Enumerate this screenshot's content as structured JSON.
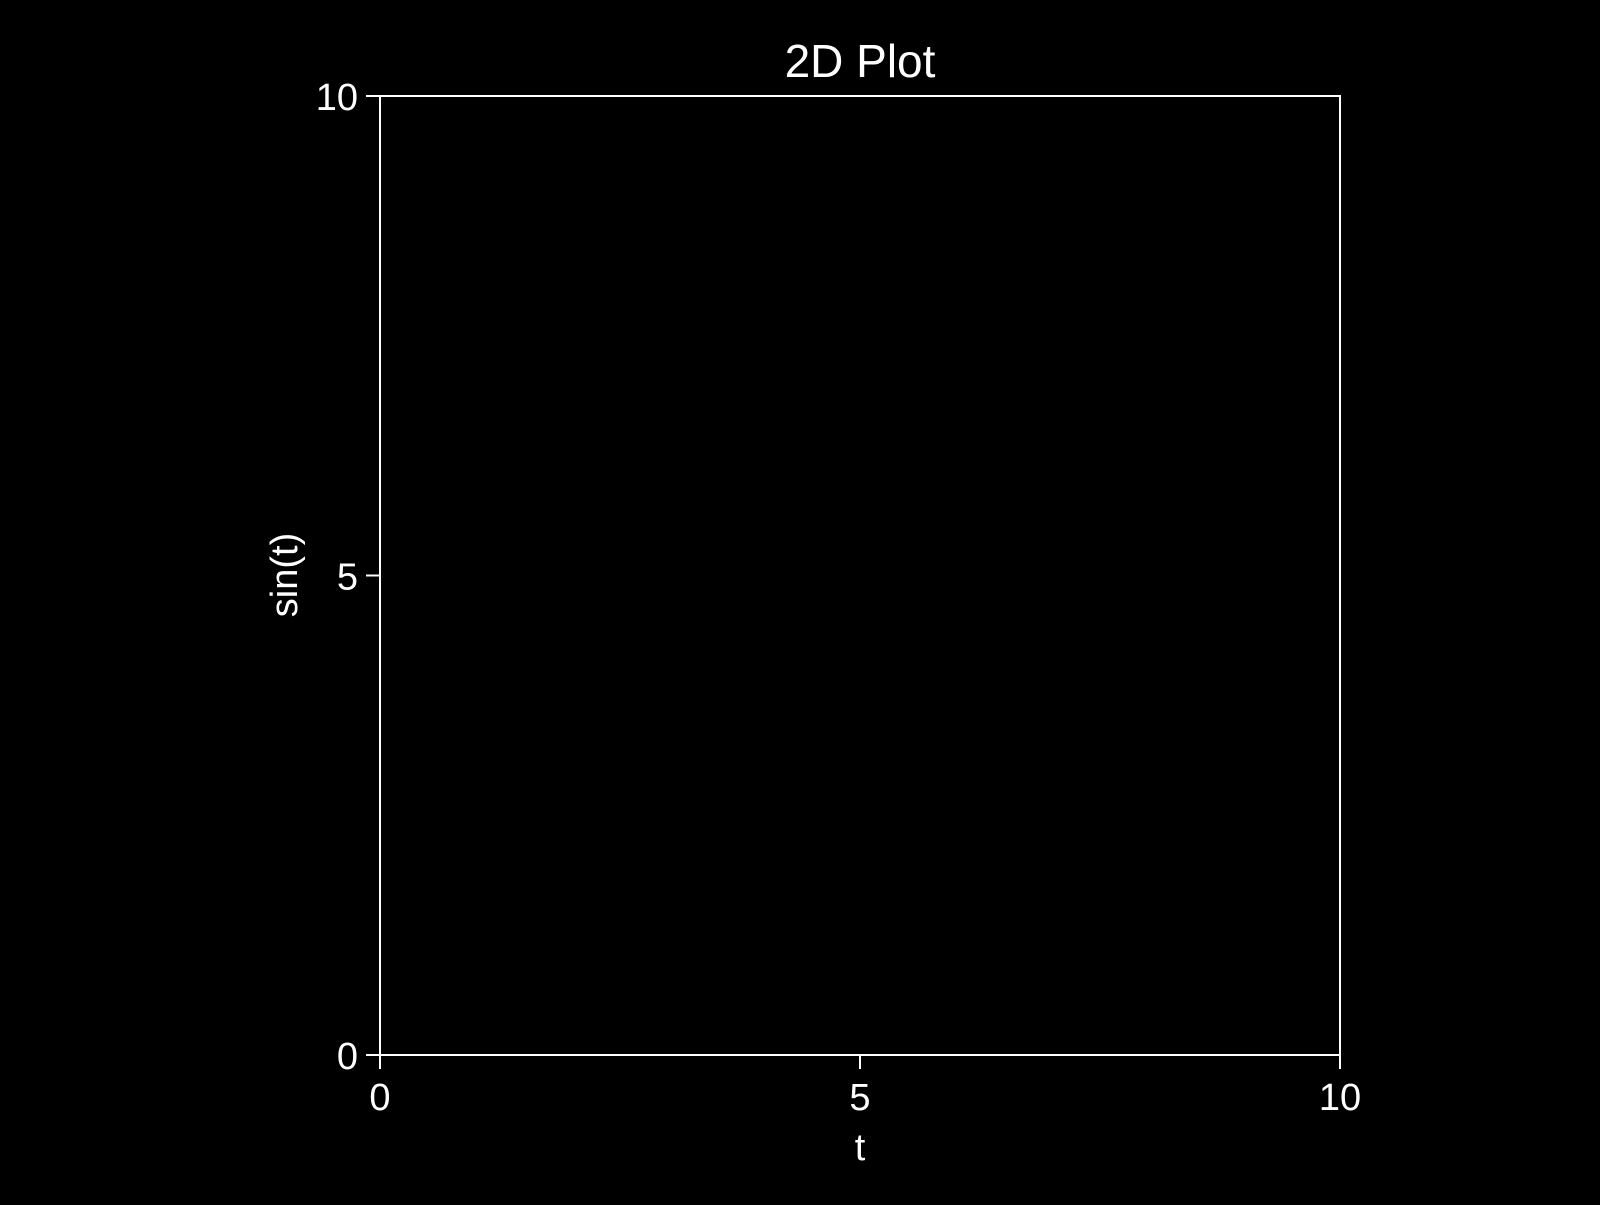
{
  "chart_data": {
    "type": "line",
    "title": "2D Plot",
    "xlabel": "t",
    "ylabel": "sin(t)",
    "xlim": [
      0,
      10
    ],
    "ylim": [
      0,
      10
    ],
    "xticks": [
      0,
      5,
      10
    ],
    "yticks": [
      0,
      5,
      10
    ],
    "xtick_labels": [
      "0",
      "5",
      "10"
    ],
    "ytick_labels": [
      "0",
      "5",
      "10"
    ],
    "grid": false,
    "series": [],
    "colors": {
      "background": "#000000",
      "axes": "#ffffff",
      "text": "#ffffff"
    }
  }
}
